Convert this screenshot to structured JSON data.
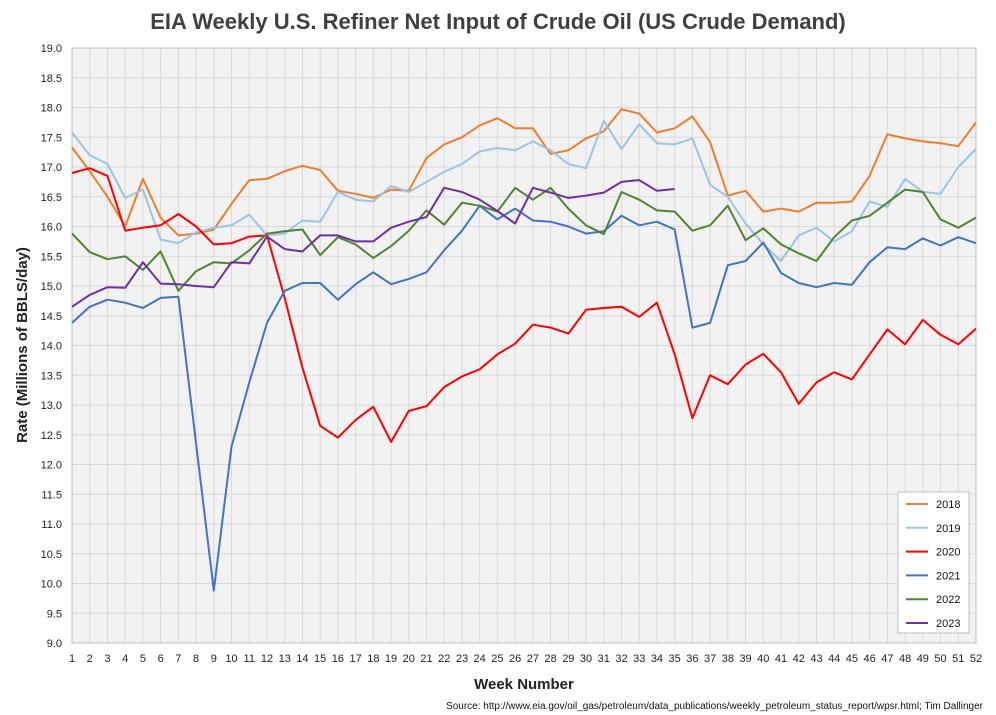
{
  "chart_data": {
    "type": "line",
    "title": "EIA Weekly U.S. Refiner Net Input of Crude Oil (US Crude Demand)",
    "xlabel": "Week Number",
    "ylabel": "Rate (Millions of BBLS/day)",
    "source": "Source: http://www.eia.gov/oil_gas/petroleum/data_publications/weekly_petroleum_status_report/wpsr.html; Tim Dallinger",
    "ylim": [
      9.0,
      19.0
    ],
    "ytick_step": 0.5,
    "xlim": [
      1,
      52
    ],
    "grid": true,
    "legend_position": "bottom-right",
    "x": [
      1,
      2,
      3,
      4,
      5,
      6,
      7,
      8,
      9,
      10,
      11,
      12,
      13,
      14,
      15,
      16,
      17,
      18,
      19,
      20,
      21,
      22,
      23,
      24,
      25,
      26,
      27,
      28,
      29,
      30,
      31,
      32,
      33,
      34,
      35,
      36,
      37,
      38,
      39,
      40,
      41,
      42,
      43,
      44,
      45,
      46,
      47,
      48,
      49,
      50,
      51,
      52
    ],
    "series": [
      {
        "name": "2018",
        "color": "#ed7d31",
        "values": [
          17.33,
          16.93,
          16.5,
          16.0,
          16.8,
          16.15,
          15.85,
          15.88,
          15.95,
          16.38,
          16.78,
          16.8,
          16.93,
          17.02,
          16.95,
          16.6,
          16.55,
          16.48,
          16.62,
          16.6,
          17.15,
          17.38,
          17.5,
          17.7,
          17.82,
          17.65,
          17.65,
          17.22,
          17.28,
          17.48,
          17.6,
          17.97,
          17.9,
          17.58,
          17.65,
          17.85,
          17.42,
          16.52,
          16.6,
          16.25,
          16.3,
          16.25,
          16.4,
          16.4,
          16.42,
          16.85,
          17.55,
          17.48,
          17.43,
          17.4,
          17.35,
          17.75
        ]
      },
      {
        "name": "2019",
        "color": "#9dc3e6",
        "values": [
          17.58,
          17.2,
          17.05,
          16.48,
          16.62,
          15.78,
          15.72,
          15.9,
          15.98,
          16.02,
          16.2,
          15.85,
          15.88,
          16.1,
          16.08,
          16.58,
          16.45,
          16.42,
          16.68,
          16.58,
          16.75,
          16.92,
          17.05,
          17.26,
          17.32,
          17.28,
          17.43,
          17.28,
          17.05,
          16.98,
          17.78,
          17.3,
          17.72,
          17.4,
          17.38,
          17.48,
          16.7,
          16.5,
          16.05,
          15.7,
          15.42,
          15.85,
          15.98,
          15.75,
          15.92,
          16.42,
          16.33,
          16.8,
          16.58,
          16.55,
          17.0,
          17.3
        ]
      },
      {
        "name": "2020",
        "color": "#ff0000",
        "values": [
          16.9,
          16.98,
          16.85,
          15.93,
          15.98,
          16.02,
          16.21,
          16.0,
          15.7,
          15.72,
          15.83,
          15.85,
          14.8,
          13.63,
          12.65,
          12.45,
          12.75,
          12.97,
          12.38,
          12.9,
          12.98,
          13.3,
          13.48,
          13.6,
          13.85,
          14.03,
          14.35,
          14.3,
          14.2,
          14.6,
          14.63,
          14.65,
          14.48,
          14.72,
          13.85,
          12.78,
          13.5,
          13.35,
          13.68,
          13.86,
          13.55,
          13.02,
          13.38,
          13.55,
          13.43,
          13.85,
          14.27,
          14.02,
          14.43,
          14.18,
          14.02,
          14.28
        ]
      },
      {
        "name": "2021",
        "color": "#4472c4",
        "values": [
          14.38,
          14.65,
          14.77,
          14.72,
          14.63,
          14.8,
          14.82,
          12.35,
          9.88,
          12.3,
          13.38,
          14.38,
          14.92,
          15.05,
          15.05,
          14.77,
          15.03,
          15.23,
          15.03,
          15.12,
          15.23,
          15.6,
          15.93,
          16.35,
          16.12,
          16.3,
          16.1,
          16.08,
          16.0,
          15.88,
          15.92,
          16.18,
          16.02,
          16.08,
          15.95,
          14.3,
          14.38,
          15.35,
          15.42,
          15.73,
          15.22,
          15.05,
          14.98,
          15.05,
          15.02,
          15.4,
          15.65,
          15.62,
          15.8,
          15.68,
          15.82,
          15.72
        ]
      },
      {
        "name": "2022",
        "color": "#548235",
        "values": [
          15.88,
          15.57,
          15.45,
          15.5,
          15.27,
          15.58,
          14.92,
          15.25,
          15.4,
          15.38,
          15.6,
          15.88,
          15.92,
          15.95,
          15.52,
          15.82,
          15.7,
          15.47,
          15.67,
          15.93,
          16.27,
          16.03,
          16.4,
          16.35,
          16.25,
          16.65,
          16.45,
          16.65,
          16.3,
          16.02,
          15.87,
          16.58,
          16.45,
          16.27,
          16.25,
          15.93,
          16.02,
          16.35,
          15.77,
          15.97,
          15.7,
          15.55,
          15.42,
          15.82,
          16.1,
          16.18,
          16.4,
          16.62,
          16.58,
          16.12,
          15.98,
          16.15
        ]
      },
      {
        "name": "2023",
        "color": "#7030a0",
        "values": [
          14.65,
          14.85,
          14.98,
          14.97,
          15.4,
          15.04,
          15.03,
          15.0,
          14.98,
          15.4,
          15.38,
          15.83,
          15.62,
          15.58,
          15.85,
          15.85,
          15.75,
          15.75,
          15.98,
          16.08,
          16.16,
          16.65,
          16.58,
          16.45,
          16.26,
          16.05,
          16.65,
          16.57,
          16.48,
          16.52,
          16.57,
          16.75,
          16.78,
          16.6,
          16.63,
          null,
          null,
          null,
          null,
          null,
          null,
          null,
          null,
          null,
          null,
          null,
          null,
          null,
          null,
          null,
          null,
          null
        ]
      }
    ]
  }
}
